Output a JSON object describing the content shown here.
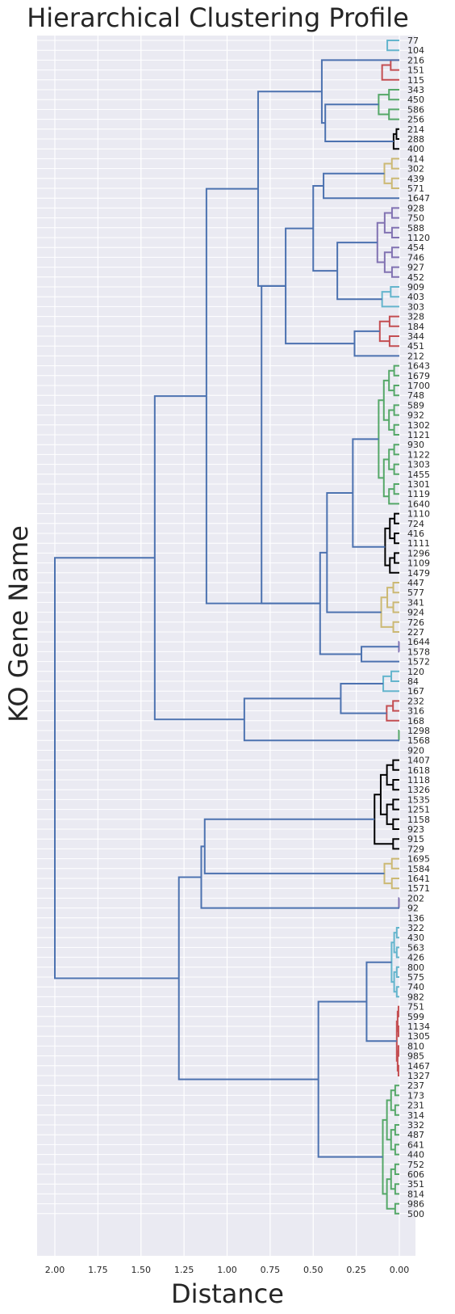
{
  "chart_data": {
    "type": "dendrogram",
    "title": "Hierarchical Clustering Profile",
    "xlabel": "Distance",
    "ylabel": "KO Gene Name",
    "xlim": [
      2.1,
      0.0
    ],
    "x_ticks": [
      "2.00",
      "1.75",
      "1.50",
      "1.25",
      "1.00",
      "0.75",
      "0.50",
      "0.25",
      "0.00"
    ],
    "x_tick_values": [
      2.0,
      1.75,
      1.5,
      1.25,
      1.0,
      0.75,
      0.5,
      0.25,
      0.0
    ],
    "grid": true,
    "colors": {
      "background": "#eaeaf2",
      "grid": "#ffffff",
      "root": "#4c72b0",
      "cyan": "#64b5cd",
      "red": "#c44e52",
      "green": "#55a868",
      "black": "#000000",
      "tan": "#ccb974",
      "purple": "#8172b2"
    },
    "leaves": [
      "77",
      "104",
      "216",
      "151",
      "115",
      "343",
      "450",
      "586",
      "256",
      "214",
      "288",
      "400",
      "414",
      "302",
      "439",
      "571",
      "1647",
      "928",
      "750",
      "588",
      "1120",
      "454",
      "746",
      "927",
      "452",
      "909",
      "403",
      "303",
      "328",
      "184",
      "344",
      "451",
      "212",
      "1643",
      "1679",
      "1700",
      "748",
      "589",
      "932",
      "1302",
      "1121",
      "930",
      "1122",
      "1303",
      "1455",
      "1301",
      "1119",
      "1640",
      "1110",
      "724",
      "416",
      "1111",
      "1296",
      "1109",
      "1479",
      "447",
      "577",
      "341",
      "924",
      "726",
      "227",
      "1644",
      "1578",
      "1572",
      "120",
      "84",
      "167",
      "232",
      "316",
      "168",
      "1298",
      "1568",
      "920",
      "1407",
      "1618",
      "1118",
      "1326",
      "1535",
      "1251",
      "1158",
      "923",
      "915",
      "729",
      "1695",
      "1584",
      "1641",
      "1571",
      "202",
      "92",
      "136",
      "322",
      "430",
      "563",
      "426",
      "800",
      "575",
      "740",
      "982",
      "751",
      "599",
      "1134",
      "1305",
      "810",
      "985",
      "1467",
      "1327",
      "237",
      "173",
      "231",
      "314",
      "332",
      "487",
      "641",
      "440",
      "752",
      "606",
      "351",
      "814",
      "986",
      "500"
    ],
    "clusters": [
      {
        "color": "cyan",
        "leaves": [
          "77",
          "104"
        ],
        "height": 0.14
      },
      {
        "color": "red",
        "leaves": [
          "216",
          "151",
          "115"
        ],
        "height": 0.15
      },
      {
        "color": "green",
        "leaves": [
          "343",
          "450",
          "586",
          "256"
        ],
        "height": 0.18
      },
      {
        "color": "black",
        "leaves": [
          "214",
          "288",
          "400"
        ],
        "height": 0.05
      },
      {
        "color": "tan",
        "leaves": [
          "414",
          "302",
          "439",
          "571"
        ],
        "height": 0.13
      },
      {
        "color": "purple",
        "leaves": [
          "928",
          "750",
          "588",
          "1120",
          "454",
          "746",
          "927",
          "452"
        ],
        "height": 0.17
      },
      {
        "color": "cyan",
        "leaves": [
          "909",
          "403",
          "303"
        ],
        "height": 0.15
      },
      {
        "color": "red",
        "leaves": [
          "328",
          "184",
          "344",
          "451"
        ],
        "height": 0.17
      },
      {
        "color": "green",
        "leaves": [
          "1643",
          "1679",
          "1700",
          "748",
          "589",
          "932",
          "1302",
          "1121",
          "930",
          "1122",
          "1303",
          "1455",
          "1301",
          "1119",
          "1640"
        ],
        "height": 0.15
      },
      {
        "color": "black",
        "leaves": [
          "1110",
          "724",
          "416",
          "1111",
          "1296",
          "1109",
          "1479"
        ],
        "height": 0.11
      },
      {
        "color": "tan",
        "leaves": [
          "447",
          "577",
          "341",
          "924",
          "726",
          "227"
        ],
        "height": 0.14
      },
      {
        "color": "purple",
        "leaves": [
          "1644",
          "1578"
        ],
        "height": 0.005
      },
      {
        "color": "cyan",
        "leaves": [
          "120",
          "84",
          "167"
        ],
        "height": 0.14
      },
      {
        "color": "red",
        "leaves": [
          "232",
          "316",
          "168"
        ],
        "height": 0.11
      },
      {
        "color": "green",
        "leaves": [
          "1298",
          "1568"
        ],
        "height": 0.005
      },
      {
        "color": "black",
        "leaves": [
          "1407",
          "1618",
          "1118",
          "1326",
          "1535",
          "1251",
          "1158",
          "923",
          "915",
          "729"
        ],
        "height": 0.18
      },
      {
        "color": "tan",
        "leaves": [
          "1695",
          "1584",
          "1641",
          "1571"
        ],
        "height": 0.13
      },
      {
        "color": "purple",
        "leaves": [
          "202",
          "92"
        ],
        "height": 0.005
      },
      {
        "color": "cyan",
        "leaves": [
          "322",
          "430",
          "563",
          "426",
          "800",
          "575",
          "740",
          "982"
        ],
        "height": 0.06
      },
      {
        "color": "red",
        "leaves": [
          "751",
          "599",
          "1134",
          "1305",
          "810",
          "985",
          "1467",
          "1327"
        ],
        "height": 0.02
      },
      {
        "color": "green",
        "leaves": [
          "237",
          "173",
          "231",
          "314",
          "332",
          "487",
          "641",
          "440",
          "752",
          "606",
          "351",
          "814",
          "986",
          "500"
        ],
        "height": 0.12
      }
    ],
    "root_merges": [
      {
        "height": 0.45,
        "joins": [
          "77..115",
          "343..400"
        ]
      },
      {
        "height": 0.43,
        "joins": [
          "343..256",
          "214..400"
        ]
      },
      {
        "height": 0.82,
        "joins": [
          "77..400",
          "414..212"
        ]
      },
      {
        "height": 0.44,
        "joins": [
          "414..571",
          "1647"
        ]
      },
      {
        "height": 0.5,
        "joins": [
          "414..1647",
          "928..303"
        ]
      },
      {
        "height": 0.36,
        "joins": [
          "928..452",
          "909..303"
        ]
      },
      {
        "height": 0.66,
        "joins": [
          "414..303",
          "328..212"
        ]
      },
      {
        "height": 0.26,
        "joins": [
          "328..451",
          "212"
        ]
      },
      {
        "height": 1.12,
        "joins": [
          "77..212",
          "1643..1572"
        ]
      },
      {
        "height": 0.8,
        "joins": [
          "414..212",
          "1643..1572"
        ]
      },
      {
        "height": 0.27,
        "joins": [
          "1643..1640",
          "1110..1479"
        ]
      },
      {
        "height": 0.42,
        "joins": [
          "1643..1479",
          "447..227"
        ]
      },
      {
        "height": 0.46,
        "joins": [
          "1643..227",
          "1644..1572"
        ]
      },
      {
        "height": 0.22,
        "joins": [
          "1644..1578",
          "1572"
        ]
      },
      {
        "height": 1.42,
        "joins": [
          "77..1572",
          "120..920"
        ]
      },
      {
        "height": 0.9,
        "joins": [
          "120..168",
          "1298..920"
        ]
      },
      {
        "height": 0.34,
        "joins": [
          "120..167",
          "232..168"
        ]
      },
      {
        "height": 2.0,
        "joins": [
          "77..920",
          "1407..500"
        ]
      },
      {
        "height": 1.28,
        "joins": [
          "1407..136",
          "322..500"
        ]
      },
      {
        "height": 1.15,
        "joins": [
          "1407..1571",
          "202..136"
        ]
      },
      {
        "height": 1.13,
        "joins": [
          "1407..729",
          "1695..1571"
        ]
      },
      {
        "height": 0.47,
        "joins": [
          "322..1327",
          "237..500"
        ]
      },
      {
        "height": 0.19,
        "joins": [
          "322..982",
          "751..1327"
        ]
      }
    ]
  }
}
